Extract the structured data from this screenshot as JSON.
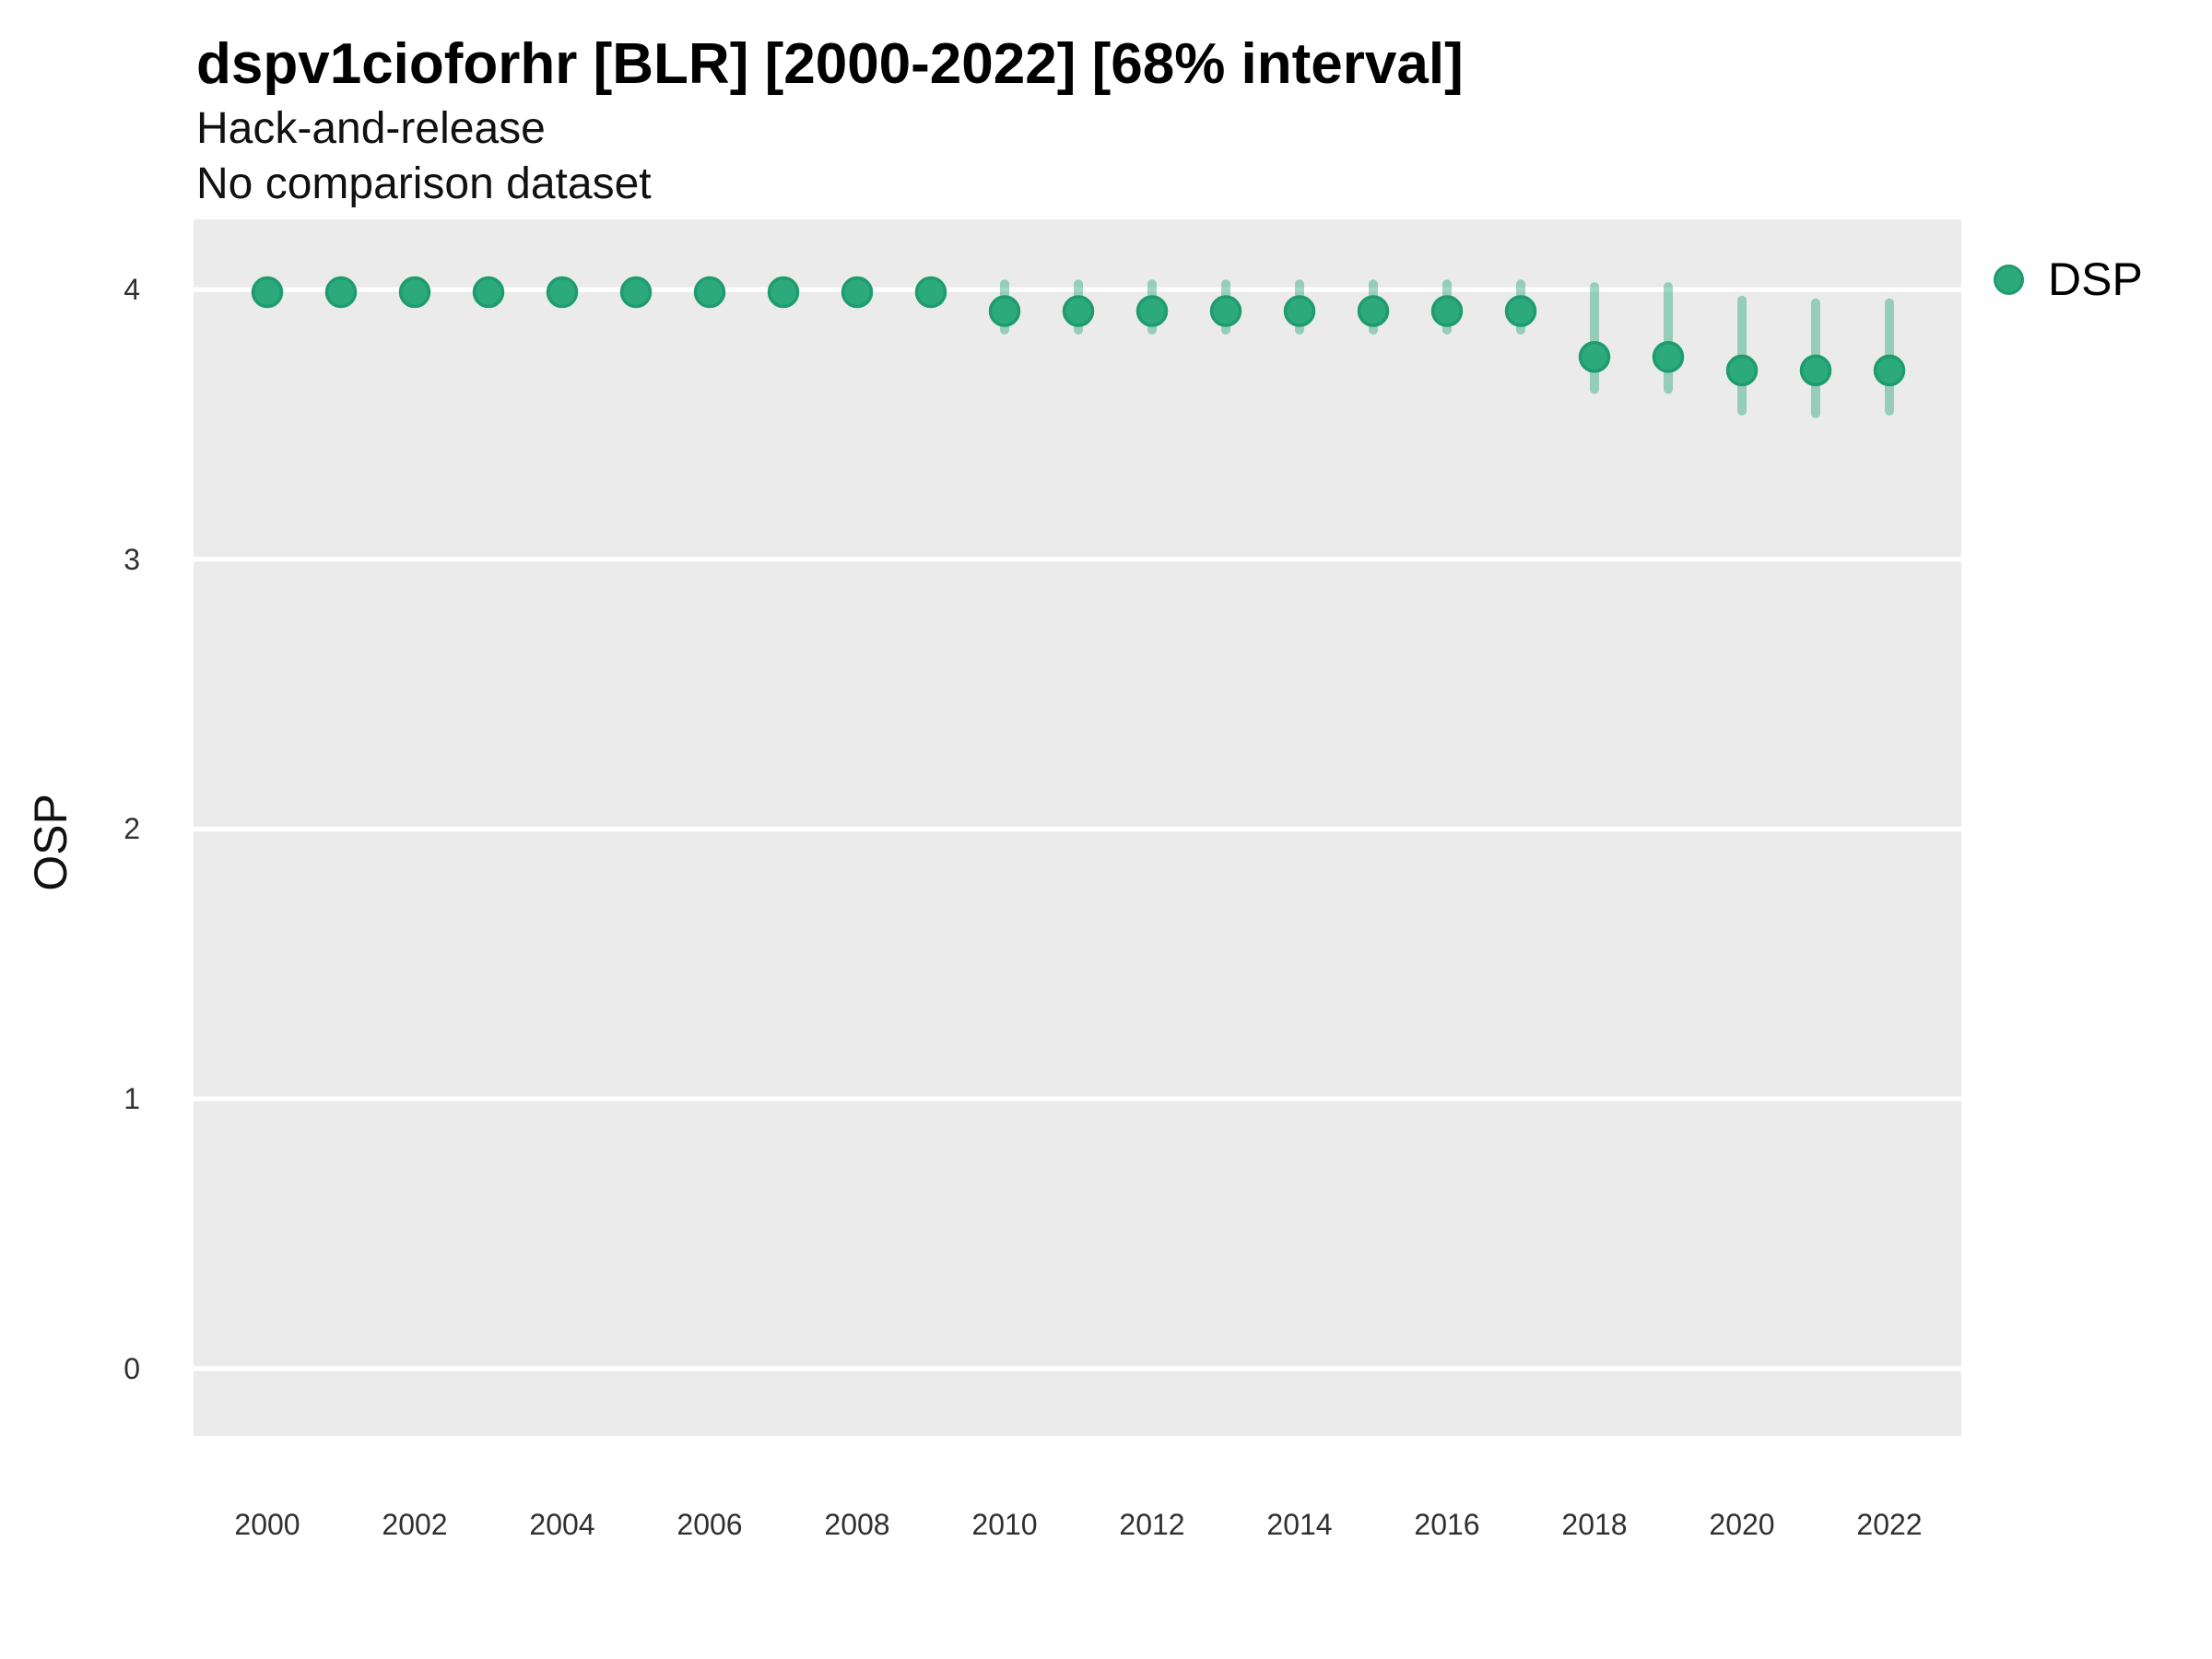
{
  "chart_data": {
    "type": "scatter",
    "title": "dspv1cioforhr [BLR] [2000-2022] [68% interval]",
    "subtitle": [
      "Hack-and-release",
      "No comparison dataset"
    ],
    "xlabel": "",
    "ylabel": "OSP",
    "ylim": [
      -0.25,
      4.26
    ],
    "y_ticks": [
      0,
      1,
      2,
      3,
      4
    ],
    "x_ticks": [
      2000,
      2002,
      2004,
      2006,
      2008,
      2010,
      2012,
      2014,
      2016,
      2018,
      2020,
      2022
    ],
    "grid": "horizontal-major-only",
    "legend": {
      "position": "right",
      "entries": [
        {
          "label": "DSP",
          "color": "#2DA97E"
        }
      ]
    },
    "interval_level": "68%",
    "series": [
      {
        "name": "DSP",
        "points": [
          {
            "year": 2000,
            "value": 3.99,
            "low": 3.99,
            "high": 3.99
          },
          {
            "year": 2001,
            "value": 3.99,
            "low": 3.99,
            "high": 3.99
          },
          {
            "year": 2002,
            "value": 3.99,
            "low": 3.99,
            "high": 3.99
          },
          {
            "year": 2003,
            "value": 3.99,
            "low": 3.99,
            "high": 3.99
          },
          {
            "year": 2004,
            "value": 3.99,
            "low": 3.99,
            "high": 3.99
          },
          {
            "year": 2005,
            "value": 3.99,
            "low": 3.99,
            "high": 3.99
          },
          {
            "year": 2006,
            "value": 3.99,
            "low": 3.99,
            "high": 3.99
          },
          {
            "year": 2007,
            "value": 3.99,
            "low": 3.99,
            "high": 3.99
          },
          {
            "year": 2008,
            "value": 3.99,
            "low": 3.99,
            "high": 3.99
          },
          {
            "year": 2009,
            "value": 3.99,
            "low": 3.99,
            "high": 3.99
          },
          {
            "year": 2010,
            "value": 3.92,
            "low": 3.85,
            "high": 4.02
          },
          {
            "year": 2011,
            "value": 3.92,
            "low": 3.85,
            "high": 4.02
          },
          {
            "year": 2012,
            "value": 3.92,
            "low": 3.85,
            "high": 4.02
          },
          {
            "year": 2013,
            "value": 3.92,
            "low": 3.85,
            "high": 4.02
          },
          {
            "year": 2014,
            "value": 3.92,
            "low": 3.85,
            "high": 4.02
          },
          {
            "year": 2015,
            "value": 3.92,
            "low": 3.85,
            "high": 4.02
          },
          {
            "year": 2016,
            "value": 3.92,
            "low": 3.85,
            "high": 4.02
          },
          {
            "year": 2017,
            "value": 3.92,
            "low": 3.85,
            "high": 4.02
          },
          {
            "year": 2018,
            "value": 3.75,
            "low": 3.63,
            "high": 4.01
          },
          {
            "year": 2019,
            "value": 3.75,
            "low": 3.63,
            "high": 4.01
          },
          {
            "year": 2020,
            "value": 3.7,
            "low": 3.55,
            "high": 3.96
          },
          {
            "year": 2021,
            "value": 3.7,
            "low": 3.54,
            "high": 3.95
          },
          {
            "year": 2022,
            "value": 3.7,
            "low": 3.55,
            "high": 3.95
          }
        ]
      }
    ],
    "colors": {
      "point_fill": "#2DA97E",
      "point_stroke": "#1F9C6E",
      "interval": "rgba(45,169,126,0.45)",
      "panel_bg": "#EBEBEB",
      "gridline": "#FFFFFF",
      "title_text": "#000000",
      "tick_text": "#303030"
    }
  }
}
